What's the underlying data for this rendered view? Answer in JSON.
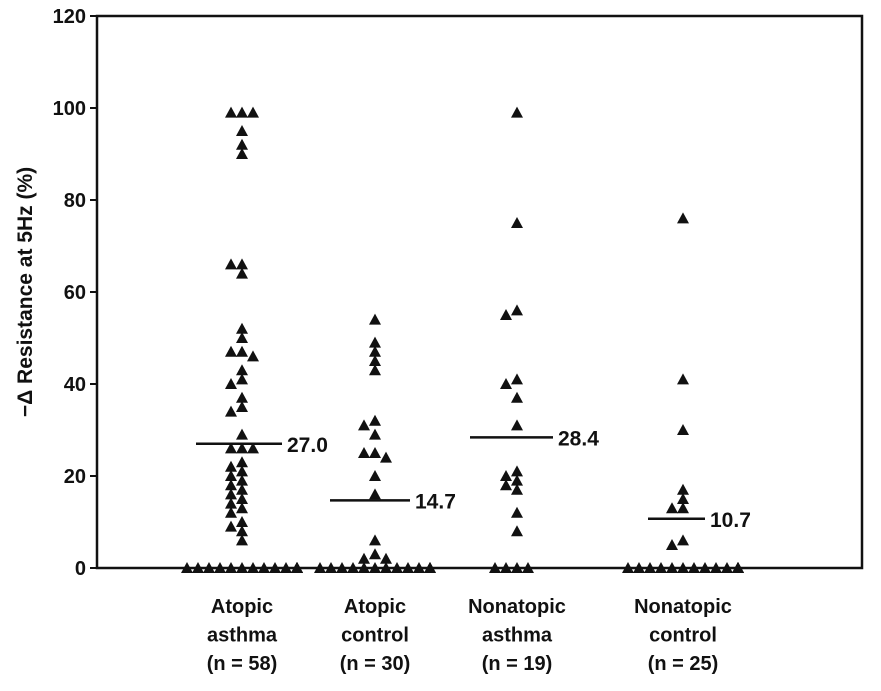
{
  "chart_data": {
    "type": "scatter",
    "title": "",
    "xlabel": "",
    "ylabel": "−Δ Resistance at 5Hz (%)",
    "ylim": [
      0,
      120
    ],
    "yticks": [
      0,
      20,
      40,
      60,
      80,
      100,
      120
    ],
    "grid": false,
    "groups": [
      {
        "name": "Atopic asthma",
        "label_lines": [
          "Atopic",
          "asthma",
          "(n = 58)"
        ],
        "mean": 27.0,
        "mean_label": "27.0",
        "values": [
          99,
          99,
          99,
          95,
          92,
          90,
          66,
          66,
          64,
          52,
          50,
          47,
          47,
          46,
          43,
          41,
          40,
          37,
          35,
          34,
          29,
          26,
          26,
          26,
          23,
          22,
          21,
          20,
          19,
          18,
          17,
          16,
          15,
          14,
          13,
          12,
          10,
          9,
          8,
          6,
          0,
          0,
          0,
          0,
          0,
          0,
          0,
          0,
          0,
          0,
          0,
          0,
          0,
          0,
          0,
          0,
          0,
          0
        ]
      },
      {
        "name": "Atopic control",
        "label_lines": [
          "Atopic",
          "control",
          "(n = 30)"
        ],
        "mean": 14.7,
        "mean_label": "14.7",
        "values": [
          54,
          49,
          47,
          45,
          43,
          32,
          31,
          29,
          25,
          25,
          24,
          20,
          16,
          6,
          3,
          2,
          2,
          0,
          0,
          0,
          0,
          0,
          0,
          0,
          0,
          0,
          0,
          0,
          0,
          0
        ]
      },
      {
        "name": "Nonatopic asthma",
        "label_lines": [
          "Nonatopic",
          "asthma",
          "(n = 19)"
        ],
        "mean": 28.4,
        "mean_label": "28.4",
        "values": [
          99,
          75,
          56,
          55,
          41,
          40,
          37,
          31,
          21,
          20,
          19,
          18,
          17,
          12,
          8,
          0,
          0,
          0,
          0
        ]
      },
      {
        "name": "Nonatopic control",
        "label_lines": [
          "Nonatopic",
          "control",
          "(n = 25)"
        ],
        "mean": 10.7,
        "mean_label": "10.7",
        "values": [
          76,
          41,
          30,
          17,
          15,
          13,
          13,
          6,
          5,
          0,
          0,
          0,
          0,
          0,
          0,
          0,
          0,
          0,
          0,
          0,
          0,
          0,
          0,
          0,
          0
        ]
      }
    ]
  }
}
